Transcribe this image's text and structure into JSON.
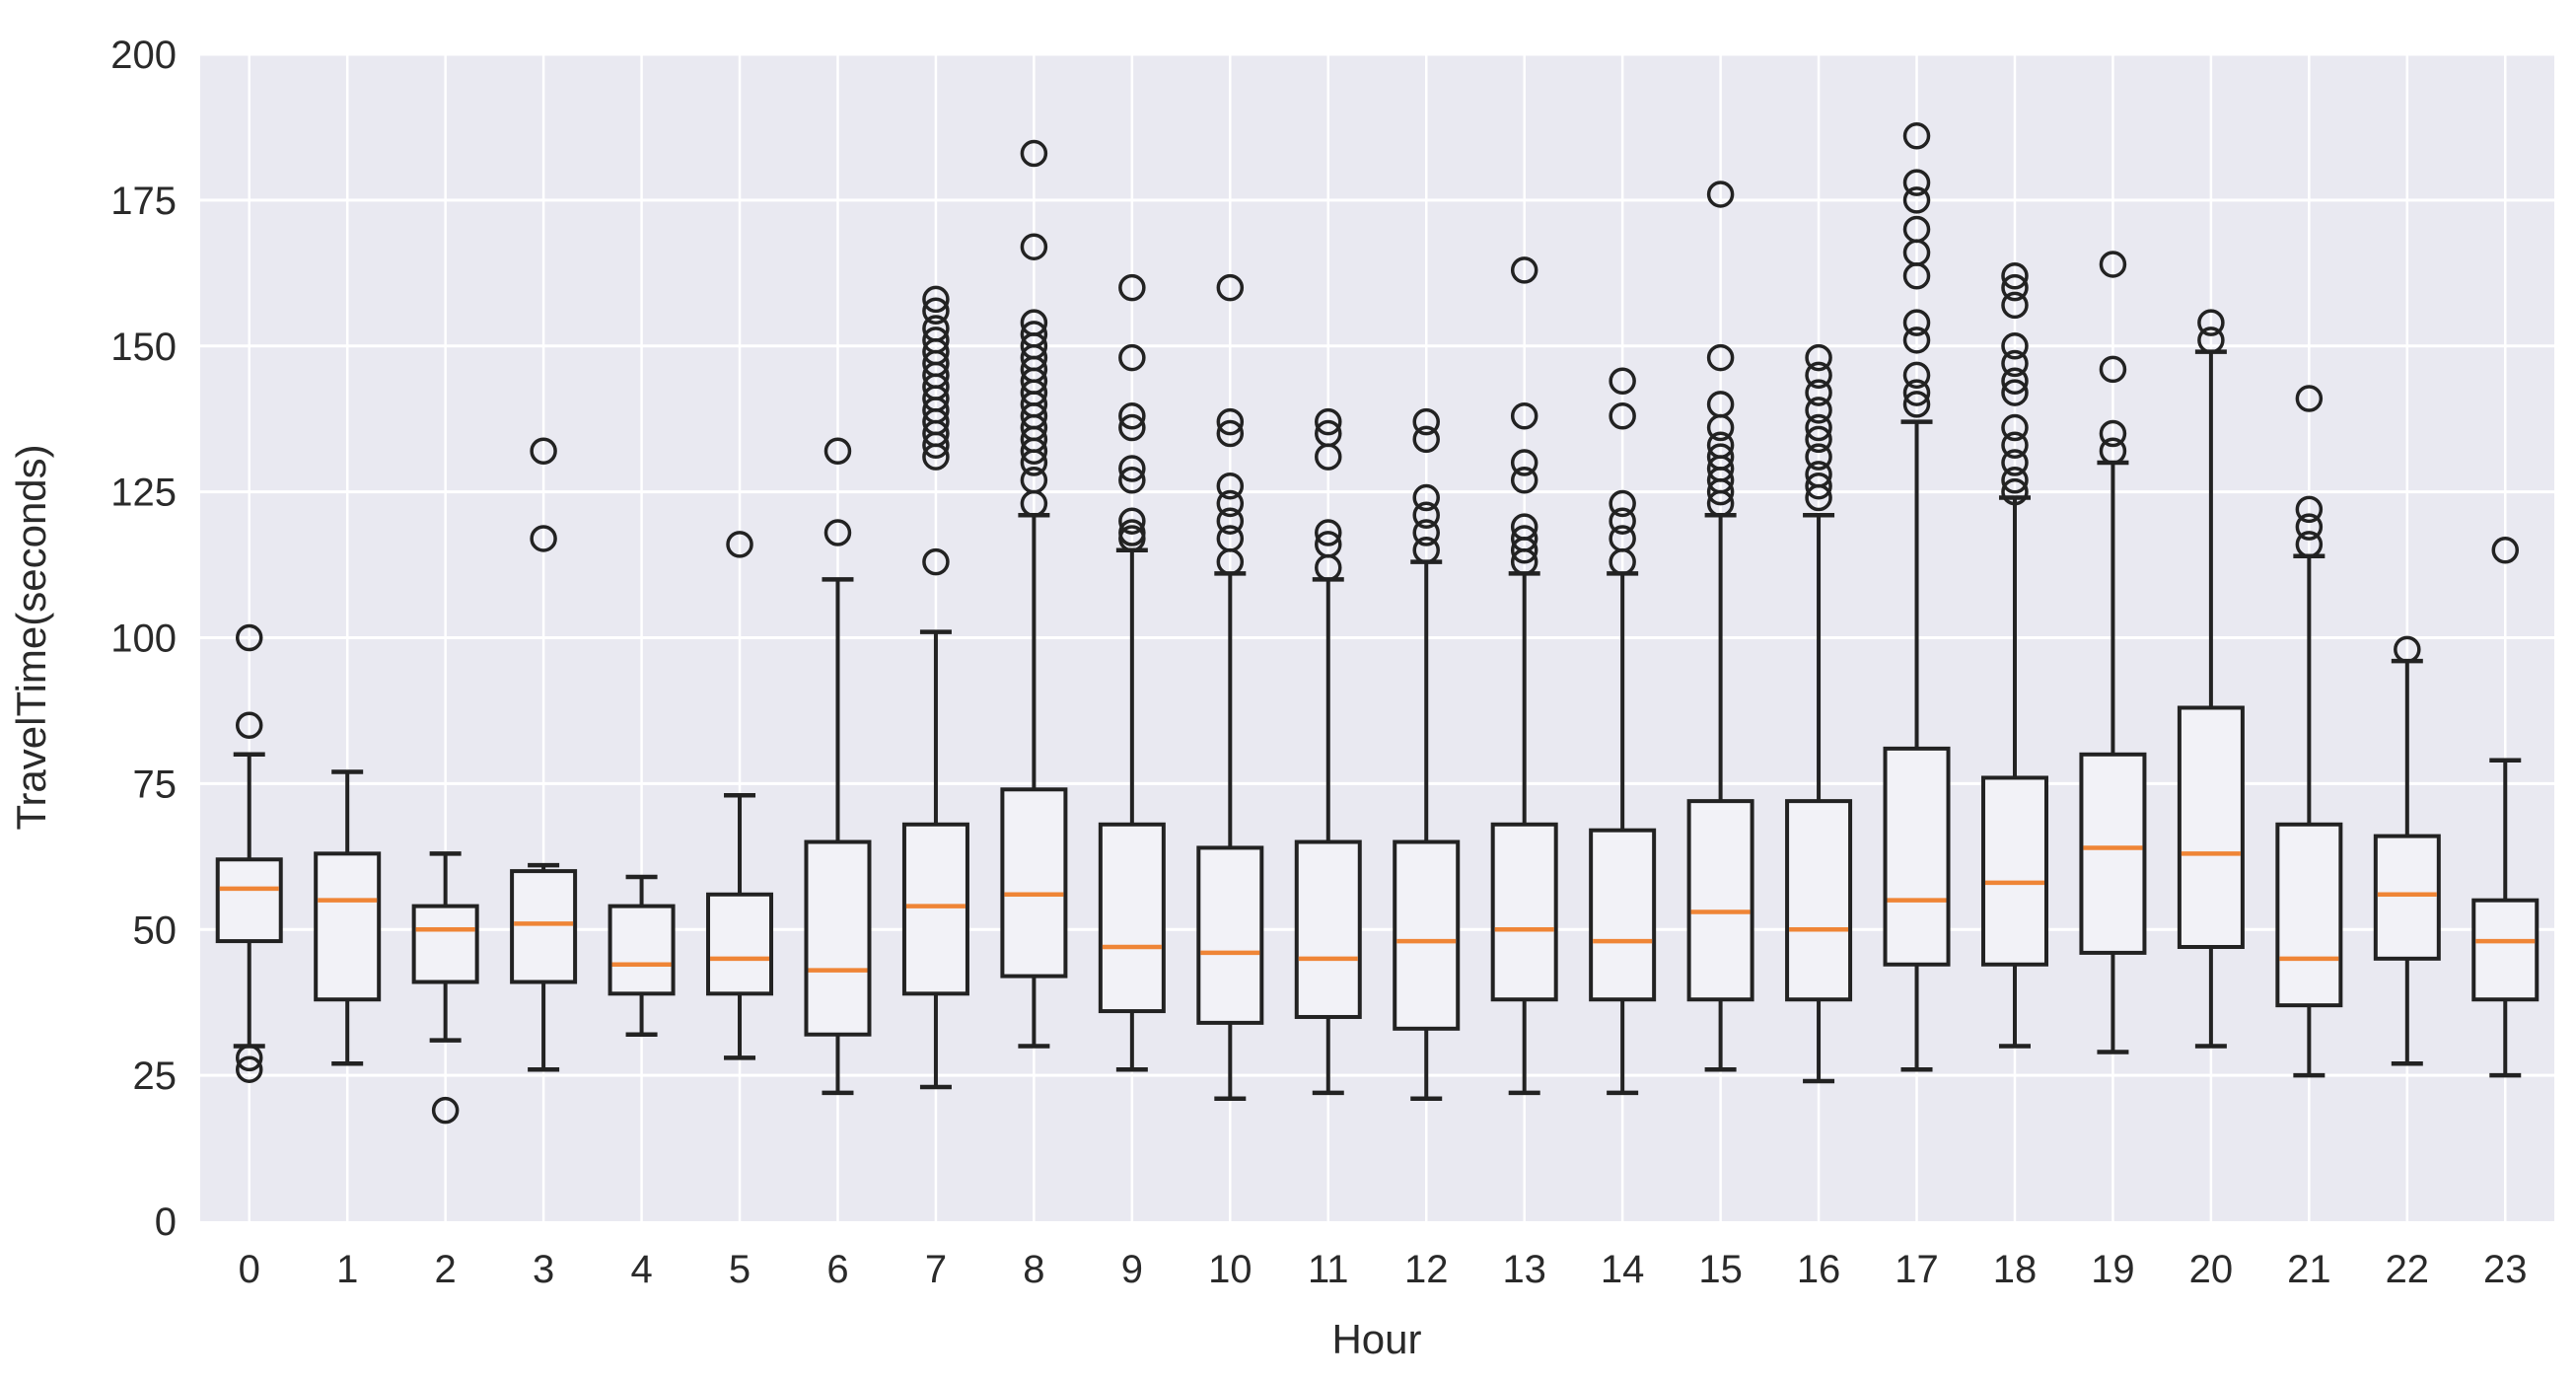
{
  "chart_data": {
    "type": "boxplot",
    "title": "",
    "xlabel": "Hour",
    "ylabel": "TravelTime(seconds)",
    "ylim": [
      0,
      200
    ],
    "y_ticks": [
      0,
      25,
      50,
      75,
      100,
      125,
      150,
      175,
      200
    ],
    "x_categories": [
      "0",
      "1",
      "2",
      "3",
      "4",
      "5",
      "6",
      "7",
      "8",
      "9",
      "10",
      "11",
      "12",
      "13",
      "14",
      "15",
      "16",
      "17",
      "18",
      "19",
      "20",
      "21",
      "22",
      "23"
    ],
    "grid": "on",
    "legend": "none",
    "boxes": [
      {
        "hour": "0",
        "whisker_low": 30,
        "q1": 48,
        "median": 57,
        "q3": 62,
        "whisker_high": 80,
        "outliers": [
          100,
          85,
          28,
          26
        ]
      },
      {
        "hour": "1",
        "whisker_low": 27,
        "q1": 38,
        "median": 55,
        "q3": 63,
        "whisker_high": 77,
        "outliers": []
      },
      {
        "hour": "2",
        "whisker_low": 31,
        "q1": 41,
        "median": 50,
        "q3": 54,
        "whisker_high": 63,
        "outliers": [
          19
        ]
      },
      {
        "hour": "3",
        "whisker_low": 26,
        "q1": 41,
        "median": 51,
        "q3": 60,
        "whisker_high": 61,
        "outliers": [
          132,
          117
        ]
      },
      {
        "hour": "4",
        "whisker_low": 32,
        "q1": 39,
        "median": 44,
        "q3": 54,
        "whisker_high": 59,
        "outliers": []
      },
      {
        "hour": "5",
        "whisker_low": 28,
        "q1": 39,
        "median": 45,
        "q3": 56,
        "whisker_high": 73,
        "outliers": [
          116
        ]
      },
      {
        "hour": "6",
        "whisker_low": 22,
        "q1": 32,
        "median": 43,
        "q3": 65,
        "whisker_high": 110,
        "outliers": [
          132,
          118
        ]
      },
      {
        "hour": "7",
        "whisker_low": 23,
        "q1": 39,
        "median": 54,
        "q3": 68,
        "whisker_high": 101,
        "outliers": [
          158,
          156,
          153,
          151,
          149,
          147,
          145,
          143,
          141,
          139,
          137,
          135,
          133,
          131,
          113
        ]
      },
      {
        "hour": "8",
        "whisker_low": 30,
        "q1": 42,
        "median": 56,
        "q3": 74,
        "whisker_high": 121,
        "outliers": [
          183,
          167,
          154,
          152,
          150,
          148,
          146,
          144,
          142,
          140,
          138,
          136,
          134,
          132,
          130,
          127,
          123
        ]
      },
      {
        "hour": "9",
        "whisker_low": 26,
        "q1": 36,
        "median": 47,
        "q3": 68,
        "whisker_high": 115,
        "outliers": [
          160,
          148,
          138,
          136,
          129,
          127,
          120,
          118,
          117
        ]
      },
      {
        "hour": "10",
        "whisker_low": 21,
        "q1": 34,
        "median": 46,
        "q3": 64,
        "whisker_high": 111,
        "outliers": [
          160,
          137,
          135,
          126,
          123,
          120,
          117,
          113
        ]
      },
      {
        "hour": "11",
        "whisker_low": 22,
        "q1": 35,
        "median": 45,
        "q3": 65,
        "whisker_high": 110,
        "outliers": [
          137,
          135,
          131,
          118,
          116,
          112
        ]
      },
      {
        "hour": "12",
        "whisker_low": 21,
        "q1": 33,
        "median": 48,
        "q3": 65,
        "whisker_high": 113,
        "outliers": [
          137,
          134,
          124,
          121,
          118,
          115
        ]
      },
      {
        "hour": "13",
        "whisker_low": 22,
        "q1": 38,
        "median": 50,
        "q3": 68,
        "whisker_high": 111,
        "outliers": [
          163,
          138,
          130,
          127,
          119,
          117,
          115,
          113
        ]
      },
      {
        "hour": "14",
        "whisker_low": 22,
        "q1": 38,
        "median": 48,
        "q3": 67,
        "whisker_high": 111,
        "outliers": [
          144,
          138,
          123,
          120,
          117,
          113
        ]
      },
      {
        "hour": "15",
        "whisker_low": 26,
        "q1": 38,
        "median": 53,
        "q3": 72,
        "whisker_high": 121,
        "outliers": [
          176,
          148,
          140,
          136,
          133,
          131,
          129,
          127,
          125,
          123
        ]
      },
      {
        "hour": "16",
        "whisker_low": 24,
        "q1": 38,
        "median": 50,
        "q3": 72,
        "whisker_high": 121,
        "outliers": [
          148,
          145,
          142,
          139,
          136,
          134,
          131,
          128,
          126,
          124
        ]
      },
      {
        "hour": "17",
        "whisker_low": 26,
        "q1": 44,
        "median": 55,
        "q3": 81,
        "whisker_high": 137,
        "outliers": [
          186,
          178,
          175,
          170,
          166,
          162,
          154,
          151,
          145,
          142,
          140
        ]
      },
      {
        "hour": "18",
        "whisker_low": 30,
        "q1": 44,
        "median": 58,
        "q3": 76,
        "whisker_high": 124,
        "outliers": [
          162,
          160,
          157,
          150,
          147,
          144,
          142,
          136,
          133,
          130,
          127,
          125
        ]
      },
      {
        "hour": "19",
        "whisker_low": 29,
        "q1": 46,
        "median": 64,
        "q3": 80,
        "whisker_high": 130,
        "outliers": [
          164,
          146,
          135,
          132
        ]
      },
      {
        "hour": "20",
        "whisker_low": 30,
        "q1": 47,
        "median": 63,
        "q3": 88,
        "whisker_high": 149,
        "outliers": [
          154,
          151
        ]
      },
      {
        "hour": "21",
        "whisker_low": 25,
        "q1": 37,
        "median": 45,
        "q3": 68,
        "whisker_high": 114,
        "outliers": [
          141,
          122,
          119,
          116
        ]
      },
      {
        "hour": "22",
        "whisker_low": 27,
        "q1": 45,
        "median": 56,
        "q3": 66,
        "whisker_high": 96,
        "outliers": [
          98
        ]
      },
      {
        "hour": "23",
        "whisker_low": 25,
        "q1": 38,
        "median": 48,
        "q3": 55,
        "whisker_high": 79,
        "outliers": [
          115
        ]
      }
    ],
    "colors": {
      "figure_bg": "#ffffff",
      "plot_bg": "#e9e9f1",
      "grid": "#ffffff",
      "box_edge": "#222222",
      "box_fill": "#f2f2f7",
      "median": "#ef8536",
      "text": "#2a2a2a"
    }
  }
}
